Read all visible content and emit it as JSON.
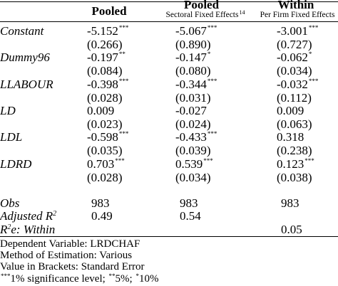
{
  "columns": [
    {
      "title": "Pooled",
      "subtitle": ""
    },
    {
      "title": "Pooled",
      "subtitle": "Sectoral Fixed Effects",
      "subtitle_note": "14"
    },
    {
      "title": "Within",
      "subtitle": "Per Firm Fixed Effects"
    }
  ],
  "rows": [
    {
      "label": "Constant",
      "coef": [
        "-5.152",
        "-5.067",
        "-3.001"
      ],
      "stars": [
        "***",
        "***",
        "***"
      ],
      "se": [
        "(0.266)",
        "(0.890)",
        "(0.727)"
      ]
    },
    {
      "label": "Dummy96",
      "coef": [
        "-0.197",
        "-0.147",
        "-0.062"
      ],
      "stars": [
        "**",
        "*",
        "*"
      ],
      "se": [
        "(0.084)",
        "(0.080)",
        "(0.034)"
      ]
    },
    {
      "label": "LLABOUR",
      "coef": [
        "-0.398",
        "-0.344",
        "-0.032"
      ],
      "stars": [
        "***",
        "***",
        "***"
      ],
      "se": [
        "(0.028)",
        "(0.031)",
        "(0.112)"
      ]
    },
    {
      "label": "LD",
      "coef": [
        "0.009",
        "-0.027",
        "0.009"
      ],
      "stars": [
        "",
        "",
        ""
      ],
      "se": [
        "(0.023)",
        "(0.024)",
        "(0.063)"
      ]
    },
    {
      "label": "LDL",
      "coef": [
        "-0.598",
        "-0.433",
        "0.318"
      ],
      "stars": [
        "***",
        "***",
        ""
      ],
      "se": [
        "(0.035)",
        "(0.039)",
        "(0.238)"
      ]
    },
    {
      "label": "LDRD",
      "coef": [
        "0.703",
        "0.539",
        "0.123"
      ],
      "stars": [
        "***",
        "***",
        "***"
      ],
      "se": [
        "(0.028)",
        "(0.034)",
        "(0.038)"
      ]
    }
  ],
  "stats": {
    "obs": {
      "label": "Obs",
      "values": [
        "983",
        "983",
        "983"
      ]
    },
    "adj_r2": {
      "label_prefix": "Adjusted R",
      "label_sup": "2",
      "values": [
        "0.49",
        "0.54",
        ""
      ]
    },
    "r2_within": {
      "label_prefix": "R",
      "label_sup": "2",
      "label_suffix": "e:  Within",
      "values": [
        "",
        "",
        "0.05"
      ]
    }
  },
  "notes": {
    "dependent": "Dependent Variable:  LRDCHAF",
    "method": "Method of Estimation:  Various",
    "brackets": "Value in Brackets:  Standard Error",
    "significance": {
      "sup1": "***",
      "text1": "1% significance level; ",
      "sup2": "**",
      "text2": "5%; ",
      "sup3": "*",
      "text3": "10%"
    }
  }
}
